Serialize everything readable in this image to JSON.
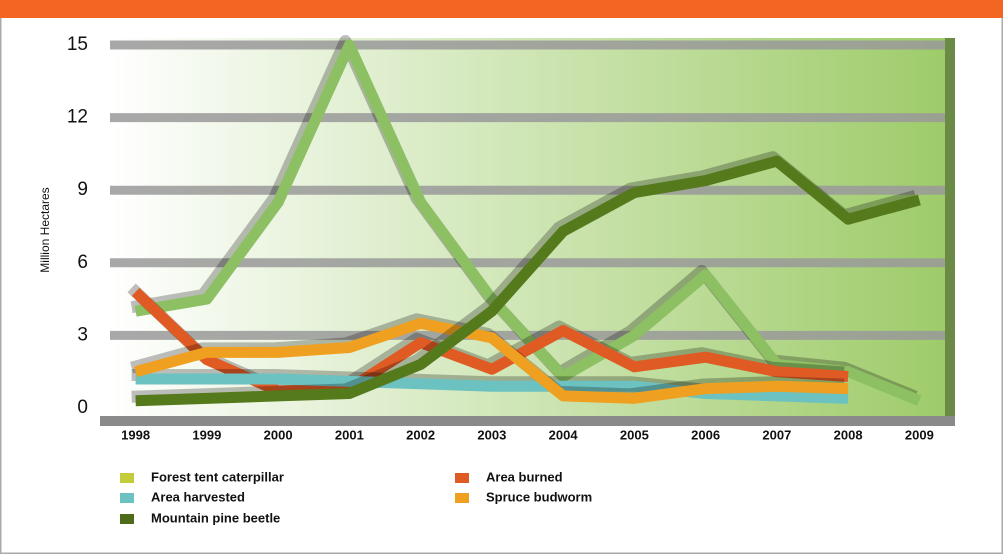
{
  "chart_data": {
    "type": "line",
    "y_label": "Million Hectares",
    "categories": [
      "1998",
      "1999",
      "2000",
      "2001",
      "2002",
      "2003",
      "2004",
      "2005",
      "2006",
      "2007",
      "2008",
      "2009"
    ],
    "ylim": [
      0,
      15
    ],
    "yticks": [
      0,
      3,
      6,
      9,
      12,
      15
    ],
    "grid": true,
    "series": [
      {
        "name": "Forest tent caterpillar",
        "color": "#8cc063",
        "legend_color": "#c5cc3a",
        "values": [
          4,
          4.5,
          8.5,
          15,
          8.5,
          4.5,
          1.3,
          3,
          5.5,
          1.8,
          1.5,
          0.3
        ]
      },
      {
        "name": "Area burned",
        "color": "#e05a24",
        "legend_color": "#e05a24",
        "values": [
          4.8,
          2.0,
          0.7,
          0.8,
          2.7,
          1.6,
          3.2,
          1.7,
          2.1,
          1.5,
          1.3,
          null
        ]
      },
      {
        "name": "Area harvested",
        "color": "#6cc2c0",
        "legend_color": "#6cc2c0",
        "values": [
          1.2,
          1.2,
          1.2,
          1.1,
          1.0,
          0.9,
          0.9,
          0.9,
          0.6,
          0.5,
          0.4,
          null
        ]
      },
      {
        "name": "Spruce budworm",
        "color": "#f0a020",
        "legend_color": "#f0a020",
        "values": [
          1.5,
          2.3,
          2.3,
          2.5,
          3.5,
          2.9,
          0.5,
          0.4,
          0.8,
          0.9,
          0.8,
          null
        ]
      },
      {
        "name": "Mountain pine beetle",
        "color": "#557a1c",
        "legend_color": "#4d6b1a",
        "values": [
          0.3,
          0.4,
          0.5,
          0.6,
          1.8,
          4.0,
          7.3,
          8.9,
          9.4,
          10.2,
          7.8,
          8.6
        ]
      }
    ]
  }
}
